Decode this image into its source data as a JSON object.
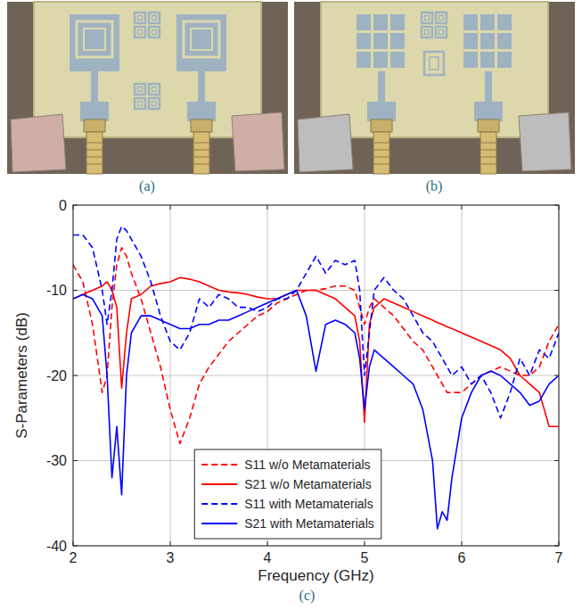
{
  "panels": {
    "a": "(a)",
    "b": "(b)",
    "c": "(c)"
  },
  "chart_data": {
    "type": "line",
    "x_label": "Frequency (GHz)",
    "y_label": "S-Parameters (dB)",
    "xlim": [
      2,
      7
    ],
    "ylim": [
      -40,
      0
    ],
    "xticks": [
      2,
      3,
      4,
      5,
      6,
      7
    ],
    "yticks": [
      -40,
      -30,
      -20,
      -10,
      0
    ],
    "grid": true,
    "legend": "lower center",
    "x": [
      2.0,
      2.1,
      2.2,
      2.3,
      2.35,
      2.4,
      2.45,
      2.5,
      2.55,
      2.6,
      2.7,
      2.8,
      2.9,
      3.0,
      3.1,
      3.2,
      3.3,
      3.4,
      3.5,
      3.6,
      3.7,
      3.8,
      3.9,
      4.0,
      4.1,
      4.2,
      4.3,
      4.4,
      4.5,
      4.6,
      4.7,
      4.8,
      4.9,
      4.95,
      5.0,
      5.05,
      5.1,
      5.2,
      5.3,
      5.4,
      5.5,
      5.6,
      5.7,
      5.75,
      5.8,
      5.85,
      5.9,
      6.0,
      6.1,
      6.2,
      6.3,
      6.4,
      6.5,
      6.6,
      6.7,
      6.8,
      6.9,
      7.0
    ],
    "series": [
      {
        "name": "S11 w/o Metamaterials",
        "color": "#ff0000",
        "line_style": "dashed",
        "values": [
          -7,
          -9,
          -14,
          -22,
          -20,
          -12,
          -7,
          -5,
          -6,
          -8,
          -11,
          -15,
          -19,
          -24,
          -28,
          -25,
          -21,
          -19,
          -17.5,
          -16,
          -15,
          -14,
          -13,
          -12.5,
          -11.5,
          -11,
          -10.5,
          -10,
          -10,
          -9.8,
          -9.5,
          -9.5,
          -10,
          -12,
          -14,
          -12,
          -11,
          -12,
          -13,
          -14.5,
          -16,
          -17,
          -19,
          -20,
          -21,
          -22,
          -22,
          -22,
          -21,
          -20,
          -19.5,
          -19,
          -19.5,
          -20,
          -20,
          -19,
          -16,
          -14
        ]
      },
      {
        "name": "S21 w/o Metamaterials",
        "color": "#ff0000",
        "line_style": "solid",
        "values": [
          -11,
          -10.5,
          -10,
          -9.5,
          -9,
          -10,
          -12,
          -21.5,
          -15,
          -11,
          -10.5,
          -9.5,
          -9.2,
          -9,
          -8.5,
          -8.7,
          -9,
          -9.5,
          -10,
          -10.2,
          -10.3,
          -10.5,
          -10.8,
          -11,
          -11,
          -10.5,
          -10,
          -10,
          -10,
          -10.5,
          -11,
          -12,
          -13,
          -16,
          -25.5,
          -14,
          -12,
          -11,
          -11.5,
          -12,
          -12.5,
          -13,
          -13.5,
          -13.8,
          -14,
          -14.3,
          -14.5,
          -15,
          -15.5,
          -16,
          -16.5,
          -17,
          -18,
          -20,
          -21,
          -22,
          -26,
          -26
        ]
      },
      {
        "name": "S11 with Metamaterials",
        "color": "#0000ff",
        "line_style": "dashed",
        "values": [
          -3.5,
          -3.5,
          -5,
          -10,
          -14,
          -10,
          -4,
          -2.5,
          -3,
          -4,
          -6,
          -9,
          -13,
          -16,
          -17,
          -15,
          -11,
          -12,
          -10.5,
          -11,
          -12,
          -12,
          -12.5,
          -12,
          -11,
          -11,
          -10,
          -8,
          -6,
          -8,
          -6.5,
          -7,
          -6.5,
          -10,
          -20,
          -15,
          -10,
          -8.5,
          -10,
          -11,
          -13,
          -15,
          -16,
          -17,
          -18,
          -19,
          -20,
          -19,
          -21,
          -20,
          -22,
          -25,
          -22,
          -18,
          -20,
          -17,
          -18,
          -15
        ]
      },
      {
        "name": "S21 with Metamaterials",
        "color": "#0000ff",
        "line_style": "solid",
        "values": [
          -11,
          -10.5,
          -11,
          -13,
          -20,
          -32,
          -26,
          -34,
          -20,
          -15,
          -13,
          -13,
          -13.5,
          -14,
          -14.5,
          -14.5,
          -14,
          -14,
          -13.5,
          -13.5,
          -13,
          -12.5,
          -12,
          -11.5,
          -11,
          -10.5,
          -10,
          -13,
          -19.5,
          -14,
          -13.5,
          -14,
          -15,
          -18,
          -24,
          -19,
          -17,
          -18,
          -19,
          -20,
          -21,
          -24,
          -30,
          -38,
          -36,
          -37,
          -32,
          -25,
          -22,
          -20,
          -19.5,
          -20,
          -21,
          -22,
          -23.5,
          -23,
          -21,
          -20
        ]
      }
    ]
  }
}
